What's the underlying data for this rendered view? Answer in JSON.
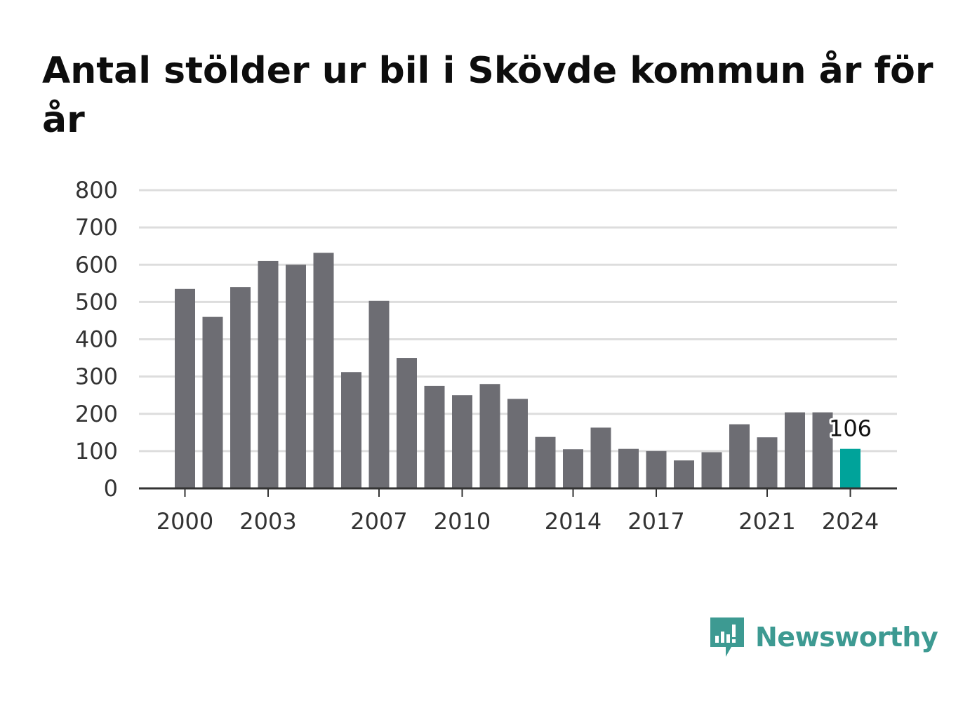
{
  "title": "Antal stölder ur bil i Skövde kommun år för år",
  "brand": {
    "name": "Newsworthy",
    "icon": "bar-chart-speech-bubble-icon",
    "color": "#3d9a92"
  },
  "colors": {
    "bar": "#6d6d73",
    "highlight": "#00a39a",
    "grid": "#dddddd",
    "axis": "#333333"
  },
  "chart_data": {
    "type": "bar",
    "title": "Antal stölder ur bil i Skövde kommun år för år",
    "xlabel": "",
    "ylabel": "",
    "categories": [
      "2000",
      "2001",
      "2002",
      "2003",
      "2004",
      "2005",
      "2006",
      "2007",
      "2008",
      "2009",
      "2010",
      "2011",
      "2012",
      "2013",
      "2014",
      "2015",
      "2016",
      "2017",
      "2018",
      "2019",
      "2020",
      "2021",
      "2022",
      "2023",
      "2024"
    ],
    "values": [
      535,
      460,
      540,
      610,
      600,
      632,
      312,
      503,
      350,
      275,
      250,
      280,
      240,
      138,
      105,
      163,
      106,
      100,
      75,
      97,
      172,
      137,
      204,
      204,
      106
    ],
    "x_tick_labels": [
      "2000",
      "2003",
      "2007",
      "2010",
      "2014",
      "2017",
      "2021",
      "2024"
    ],
    "y_ticks": [
      0,
      100,
      200,
      300,
      400,
      500,
      600,
      700,
      800
    ],
    "ylim": [
      0,
      800
    ],
    "grid": "horizontal",
    "highlight_index": 24,
    "annotations": [
      {
        "category": "2024",
        "text": "106"
      }
    ]
  }
}
